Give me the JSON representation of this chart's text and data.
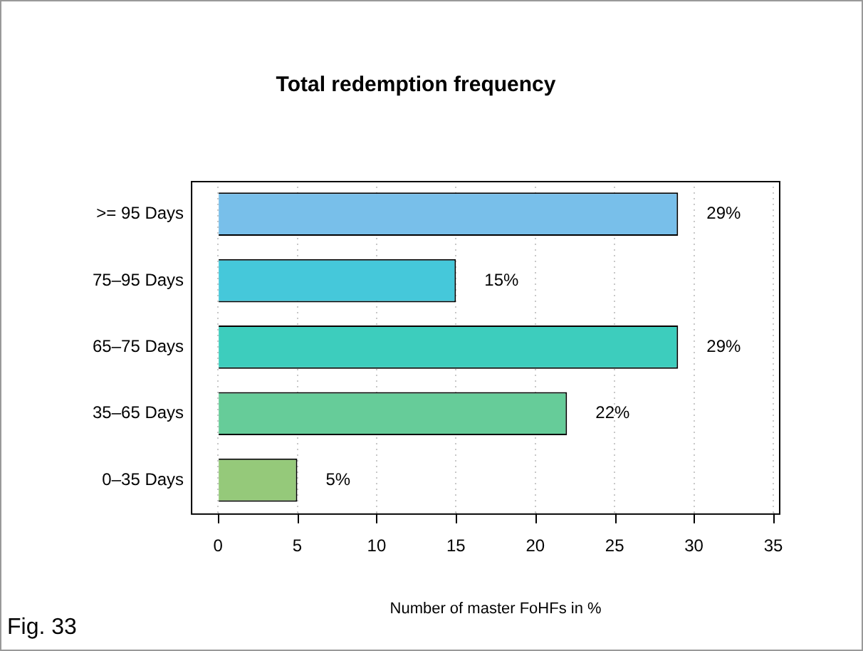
{
  "chart_data": {
    "type": "bar",
    "orientation": "horizontal",
    "title": "Total redemption frequency",
    "xlabel": "Number of master FoHFs in %",
    "categories": [
      ">= 95 Days",
      "75–95 Days",
      "65–75 Days",
      "35–65 Days",
      "0–35 Days"
    ],
    "values": [
      29,
      15,
      29,
      22,
      5
    ],
    "colors": [
      "#78bfea",
      "#45c8da",
      "#3dcdbd",
      "#66cc99",
      "#95c97a"
    ],
    "value_labels": [
      "29%",
      "15%",
      "29%",
      "22%",
      "5%"
    ],
    "xlim": [
      0,
      35
    ],
    "xticks": [
      0,
      5,
      10,
      15,
      20,
      25,
      30,
      35
    ],
    "grid": "x",
    "legend": false,
    "annotations": [
      "Fig. 33"
    ]
  }
}
